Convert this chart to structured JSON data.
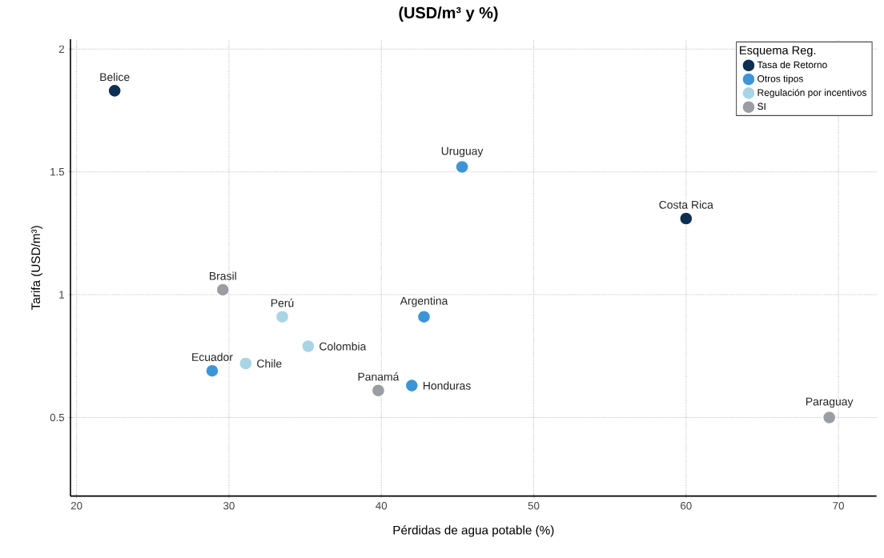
{
  "chart_data": {
    "type": "scatter",
    "title": "(USD/m³ y %)",
    "xlabel": "Pérdidas de agua potable (%)",
    "ylabel": "Tarifa (USD/m³)",
    "legend_title": "Esquema Reg.",
    "xlim": [
      19.6,
      72.5
    ],
    "ylim": [
      0.18,
      2.04
    ],
    "xticks": [
      20,
      30,
      40,
      50,
      60,
      70
    ],
    "yticks": [
      0.5,
      1,
      1.5,
      2
    ],
    "grid": true,
    "legend": "top right",
    "series": [
      {
        "name": "Tasa de Retorno",
        "color": "#0d2f52",
        "x": [
          22.5,
          60.0
        ],
        "values": [
          1.83,
          1.31
        ]
      },
      {
        "name": "Otros tipos",
        "color": "#3d95d8",
        "x": [
          45.3,
          42.8,
          28.9,
          42.0
        ],
        "values": [
          1.52,
          0.91,
          0.69,
          0.63
        ]
      },
      {
        "name": "Regulación por incentivos",
        "color": "#a8d4e6",
        "x": [
          33.5,
          35.2,
          31.1
        ],
        "values": [
          0.91,
          0.79,
          0.72
        ]
      },
      {
        "name": "SI",
        "color": "#9a9ea3",
        "x": [
          29.6,
          39.8,
          69.4
        ],
        "values": [
          1.02,
          0.61,
          0.5
        ]
      }
    ],
    "annotations": [
      {
        "text": "Belice",
        "x": 22.5,
        "y": 1.83
      },
      {
        "text": "Uruguay",
        "x": 45.3,
        "y": 1.52
      },
      {
        "text": "Costa Rica",
        "x": 60.0,
        "y": 1.31
      },
      {
        "text": "Brasil",
        "x": 29.6,
        "y": 1.02
      },
      {
        "text": "Perú",
        "x": 33.5,
        "y": 0.91
      },
      {
        "text": "Argentina",
        "x": 42.8,
        "y": 0.91
      },
      {
        "text": "Colombia",
        "x": 35.2,
        "y": 0.79
      },
      {
        "text": "Chile",
        "x": 31.1,
        "y": 0.72
      },
      {
        "text": "Ecuador",
        "x": 28.9,
        "y": 0.69
      },
      {
        "text": "Panamá",
        "x": 39.8,
        "y": 0.61
      },
      {
        "text": "Honduras",
        "x": 42.0,
        "y": 0.63
      },
      {
        "text": "Paraguay",
        "x": 69.4,
        "y": 0.5
      }
    ]
  }
}
